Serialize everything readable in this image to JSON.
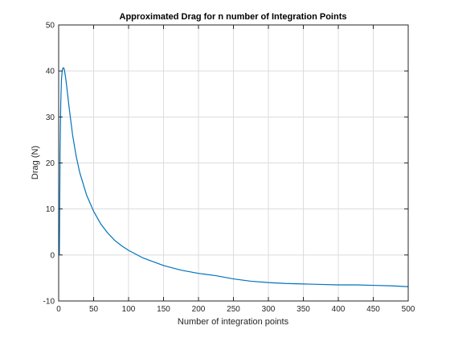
{
  "chart_data": {
    "type": "line",
    "title": "Approximated Drag for n number of Integration Points",
    "xlabel": "Number of integration points",
    "ylabel": "Drag (N)",
    "xlim": [
      0,
      500
    ],
    "ylim": [
      -10,
      50
    ],
    "xticks": [
      0,
      50,
      100,
      150,
      200,
      250,
      300,
      350,
      400,
      450,
      500
    ],
    "yticks": [
      -10,
      0,
      10,
      20,
      30,
      40,
      50
    ],
    "grid": true,
    "series": [
      {
        "color": "#0072bd",
        "x": [
          1,
          2,
          3,
          4,
          5,
          6,
          7,
          8,
          10,
          12,
          15,
          20,
          25,
          30,
          40,
          50,
          60,
          70,
          80,
          90,
          100,
          120,
          150,
          175,
          200,
          225,
          250,
          275,
          300,
          325,
          350,
          375,
          400,
          425,
          450,
          475,
          500
        ],
        "y": [
          0,
          22,
          33,
          38,
          40,
          40.6,
          40.7,
          40.4,
          38.5,
          36,
          32,
          26,
          21.5,
          18,
          13,
          9.5,
          6.8,
          4.8,
          3.2,
          2,
          1,
          -0.6,
          -2.3,
          -3.3,
          -4,
          -4.5,
          -5.2,
          -5.7,
          -6,
          -6.2,
          -6.3,
          -6.4,
          -6.5,
          -6.5,
          -6.6,
          -6.7,
          -6.9
        ]
      }
    ]
  }
}
